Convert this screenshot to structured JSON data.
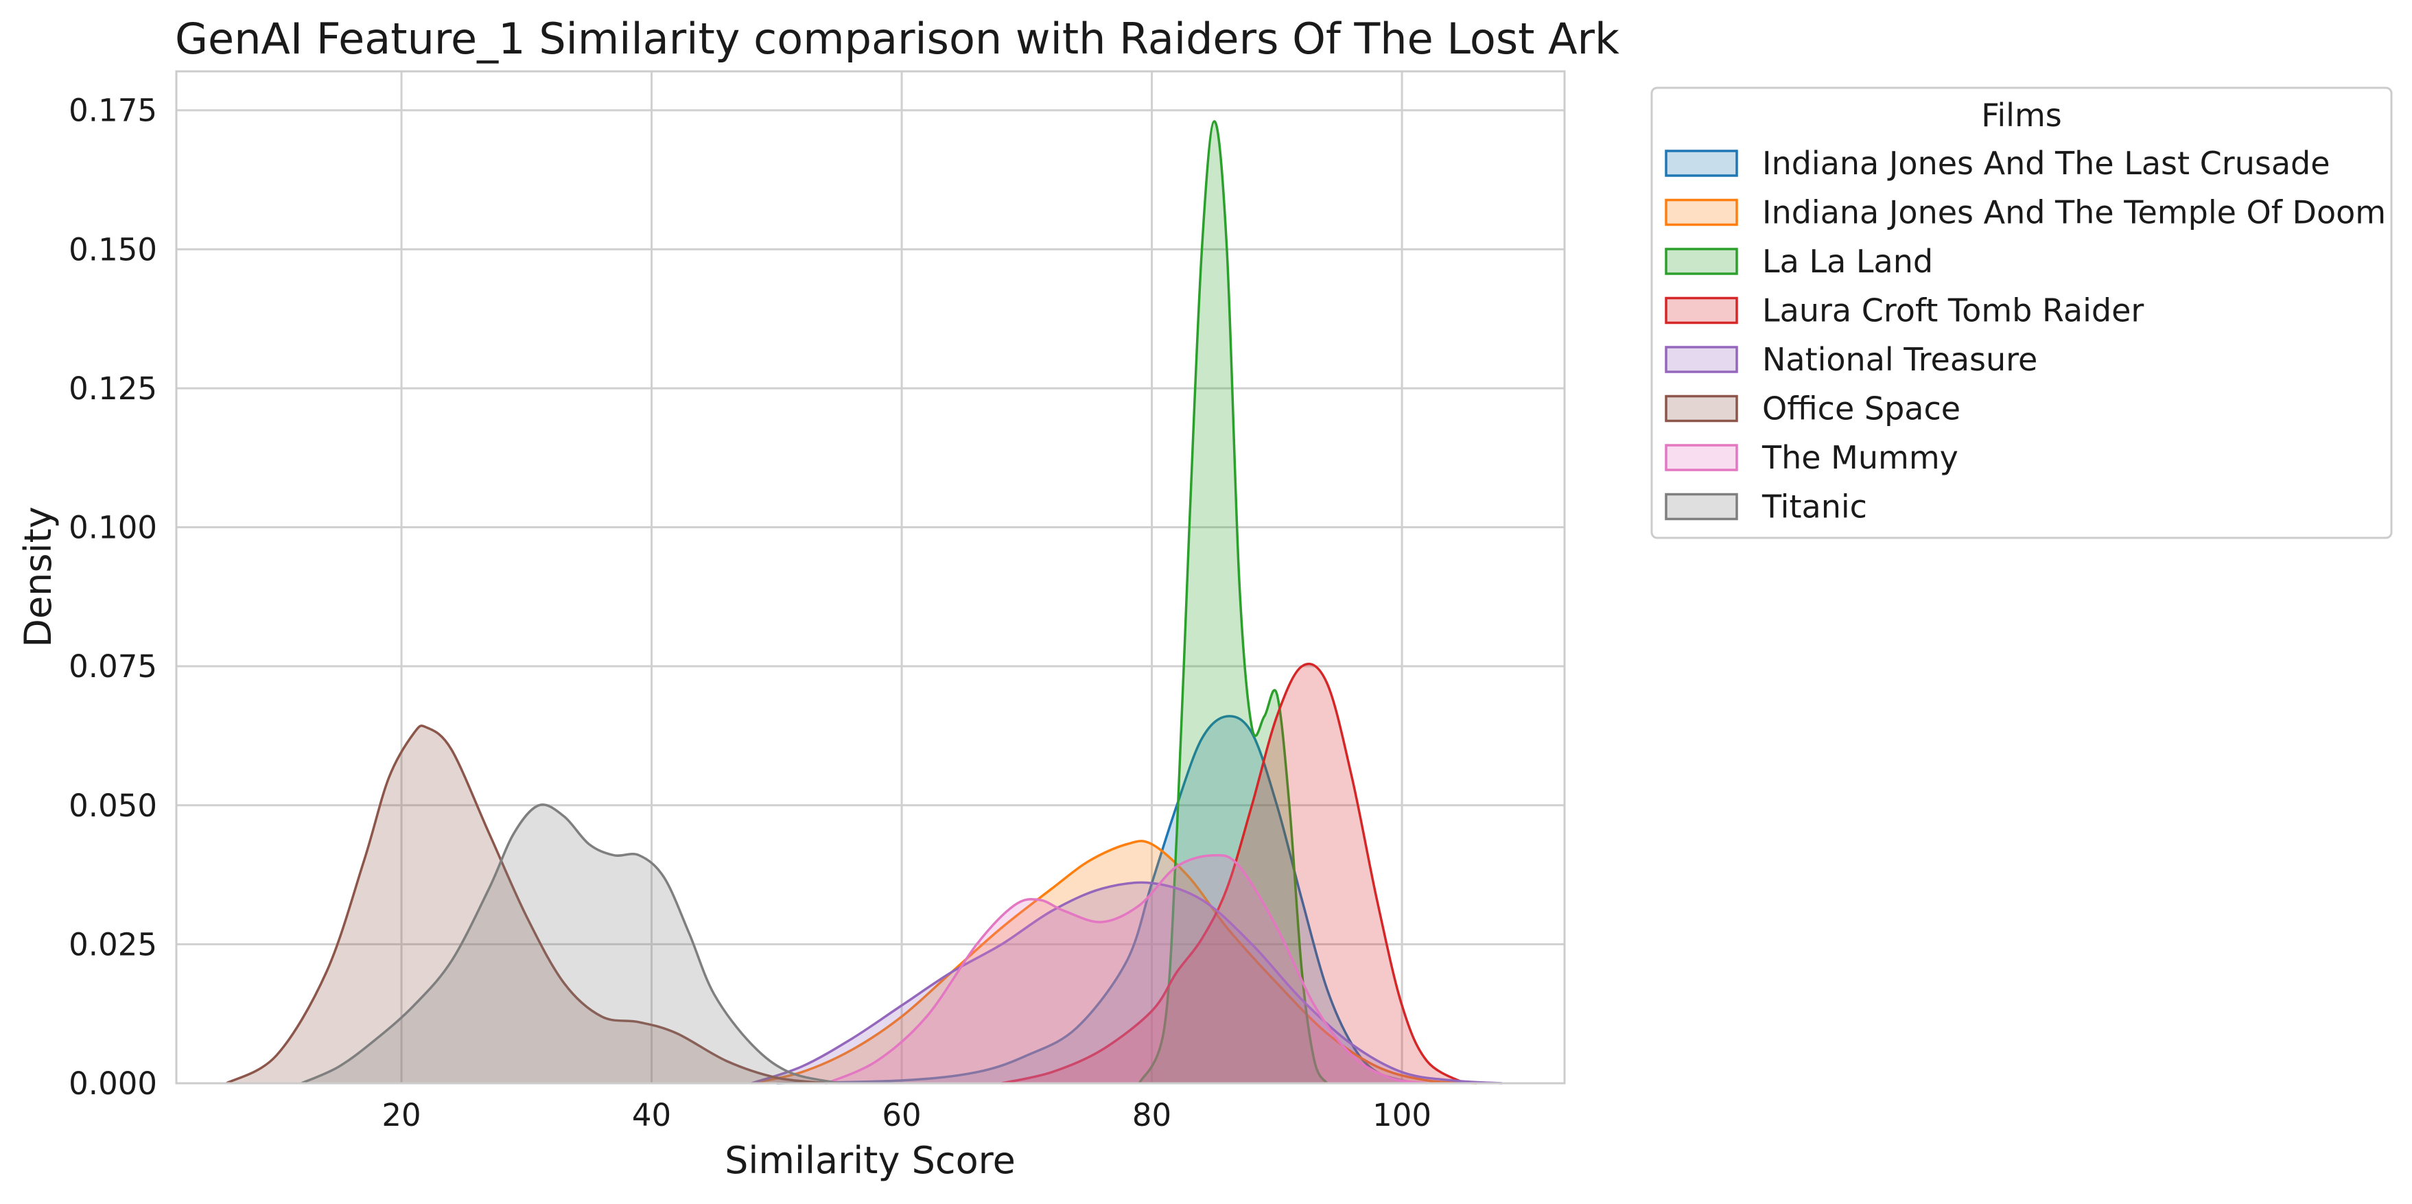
{
  "chart_data": {
    "type": "area",
    "subtype": "kde",
    "title": "GenAI Feature_1 Similarity comparison with Raiders Of The Lost Ark",
    "xlabel": "Similarity Score",
    "ylabel": "Density",
    "xlim": [
      2,
      113
    ],
    "ylim": [
      0,
      0.182
    ],
    "x_ticks": [
      20,
      40,
      60,
      80,
      100
    ],
    "y_ticks": [
      0.0,
      0.025,
      0.05,
      0.075,
      0.1,
      0.125,
      0.15,
      0.175
    ],
    "x_tick_labels": [
      "20",
      "40",
      "60",
      "80",
      "100"
    ],
    "y_tick_labels": [
      "0.000",
      "0.025",
      "0.050",
      "0.075",
      "0.100",
      "0.125",
      "0.150",
      "0.175"
    ],
    "grid": true,
    "legend": {
      "title": "Films",
      "placement": "outside-upper-right"
    },
    "series": [
      {
        "name": "Indiana Jones And The Last Crusade",
        "color": "#1f77b4",
        "points": [
          [
            50,
            0
          ],
          [
            60,
            0.0005
          ],
          [
            66,
            0.002
          ],
          [
            70,
            0.005
          ],
          [
            74,
            0.01
          ],
          [
            78,
            0.022
          ],
          [
            80,
            0.036
          ],
          [
            82,
            0.05
          ],
          [
            84,
            0.062
          ],
          [
            86,
            0.066
          ],
          [
            88,
            0.063
          ],
          [
            90,
            0.05
          ],
          [
            92,
            0.033
          ],
          [
            94,
            0.017
          ],
          [
            96,
            0.007
          ],
          [
            98,
            0.002
          ],
          [
            101,
            0
          ]
        ]
      },
      {
        "name": "Indiana Jones And The Temple Of Doom",
        "color": "#ff7f0e",
        "points": [
          [
            48,
            0
          ],
          [
            52,
            0.002
          ],
          [
            56,
            0.006
          ],
          [
            60,
            0.012
          ],
          [
            64,
            0.02
          ],
          [
            68,
            0.028
          ],
          [
            72,
            0.035
          ],
          [
            75,
            0.04
          ],
          [
            78,
            0.043
          ],
          [
            80,
            0.043
          ],
          [
            83,
            0.037
          ],
          [
            86,
            0.028
          ],
          [
            90,
            0.018
          ],
          [
            94,
            0.009
          ],
          [
            98,
            0.003
          ],
          [
            102,
            0.0005
          ],
          [
            106,
            0
          ]
        ]
      },
      {
        "name": "La La Land",
        "color": "#2ca02c",
        "points": [
          [
            79,
            0
          ],
          [
            81,
            0.01
          ],
          [
            82,
            0.045
          ],
          [
            83,
            0.1
          ],
          [
            84,
            0.15
          ],
          [
            85,
            0.173
          ],
          [
            86,
            0.15
          ],
          [
            87,
            0.09
          ],
          [
            88,
            0.064
          ],
          [
            89,
            0.066
          ],
          [
            90,
            0.07
          ],
          [
            91,
            0.05
          ],
          [
            92,
            0.02
          ],
          [
            93,
            0.004
          ],
          [
            94,
            0
          ]
        ]
      },
      {
        "name": "Laura Croft Tomb Raider",
        "color": "#d62728",
        "points": [
          [
            68,
            0
          ],
          [
            72,
            0.002
          ],
          [
            76,
            0.006
          ],
          [
            80,
            0.013
          ],
          [
            82,
            0.02
          ],
          [
            84,
            0.026
          ],
          [
            86,
            0.035
          ],
          [
            88,
            0.05
          ],
          [
            90,
            0.066
          ],
          [
            92,
            0.075
          ],
          [
            94,
            0.072
          ],
          [
            96,
            0.055
          ],
          [
            98,
            0.033
          ],
          [
            100,
            0.014
          ],
          [
            102,
            0.004
          ],
          [
            105,
            0
          ]
        ]
      },
      {
        "name": "National Treasure",
        "color": "#9467bd",
        "points": [
          [
            48,
            0
          ],
          [
            52,
            0.003
          ],
          [
            56,
            0.008
          ],
          [
            60,
            0.014
          ],
          [
            64,
            0.02
          ],
          [
            68,
            0.025
          ],
          [
            72,
            0.031
          ],
          [
            76,
            0.035
          ],
          [
            80,
            0.036
          ],
          [
            84,
            0.033
          ],
          [
            88,
            0.025
          ],
          [
            92,
            0.015
          ],
          [
            96,
            0.007
          ],
          [
            100,
            0.002
          ],
          [
            104,
            0.0005
          ],
          [
            108,
            0
          ]
        ]
      },
      {
        "name": "Office Space",
        "color": "#8c564b",
        "points": [
          [
            6,
            0
          ],
          [
            10,
            0.005
          ],
          [
            14,
            0.02
          ],
          [
            17,
            0.04
          ],
          [
            19,
            0.055
          ],
          [
            21,
            0.063
          ],
          [
            22,
            0.064
          ],
          [
            24,
            0.06
          ],
          [
            27,
            0.045
          ],
          [
            30,
            0.03
          ],
          [
            33,
            0.018
          ],
          [
            36,
            0.012
          ],
          [
            39,
            0.011
          ],
          [
            42,
            0.009
          ],
          [
            46,
            0.004
          ],
          [
            50,
            0.001
          ],
          [
            54,
            0
          ]
        ]
      },
      {
        "name": "The Mummy",
        "color": "#e377c2",
        "points": [
          [
            54,
            0
          ],
          [
            58,
            0.004
          ],
          [
            62,
            0.012
          ],
          [
            66,
            0.025
          ],
          [
            69,
            0.032
          ],
          [
            71,
            0.033
          ],
          [
            73,
            0.031
          ],
          [
            76,
            0.029
          ],
          [
            79,
            0.032
          ],
          [
            82,
            0.039
          ],
          [
            85,
            0.041
          ],
          [
            87,
            0.039
          ],
          [
            90,
            0.028
          ],
          [
            93,
            0.014
          ],
          [
            96,
            0.005
          ],
          [
            99,
            0.001
          ],
          [
            102,
            0
          ]
        ]
      },
      {
        "name": "Titanic",
        "color": "#7f7f7f",
        "points": [
          [
            12,
            0
          ],
          [
            15,
            0.003
          ],
          [
            18,
            0.008
          ],
          [
            21,
            0.014
          ],
          [
            24,
            0.022
          ],
          [
            27,
            0.035
          ],
          [
            29,
            0.045
          ],
          [
            31,
            0.05
          ],
          [
            33,
            0.048
          ],
          [
            35,
            0.043
          ],
          [
            37,
            0.041
          ],
          [
            39,
            0.041
          ],
          [
            41,
            0.037
          ],
          [
            43,
            0.027
          ],
          [
            45,
            0.016
          ],
          [
            48,
            0.007
          ],
          [
            51,
            0.002
          ],
          [
            55,
            0
          ]
        ]
      }
    ]
  }
}
